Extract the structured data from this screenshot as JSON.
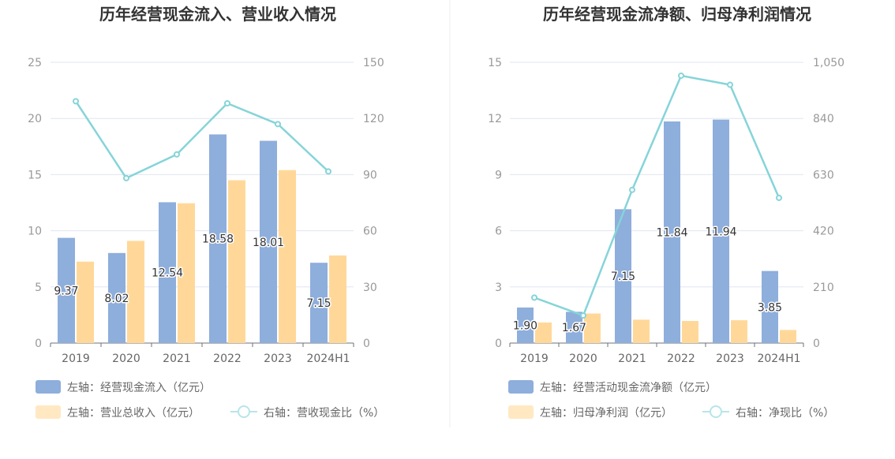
{
  "charts": [
    {
      "title": "历年经营现金流入、营业收入情况",
      "chart_data": {
        "type": "bar",
        "categories": [
          "2019",
          "2020",
          "2021",
          "2022",
          "2023",
          "2024H1"
        ],
        "y_left": {
          "min": 0,
          "max": 25,
          "ticks": [
            "0",
            "5",
            "10",
            "15",
            "20",
            "25"
          ]
        },
        "y_right": {
          "min": 0,
          "max": 150,
          "ticks": [
            "0",
            "30",
            "60",
            "90",
            "120",
            "150"
          ]
        },
        "series": [
          {
            "name": "左轴：经营现金流入（亿元）",
            "kind": "bar",
            "axis": "left",
            "color": "#8eaedc",
            "values": [
              9.37,
              8.02,
              12.54,
              18.58,
              18.01,
              7.15
            ],
            "labels": [
              "9.37",
              "8.02",
              "12.54",
              "18.58",
              "18.01",
              "7.15"
            ]
          },
          {
            "name": "左轴：营业总收入（亿元）",
            "kind": "bar",
            "axis": "left",
            "color": "#ffd899",
            "values": [
              7.25,
              9.1,
              12.45,
              14.5,
              15.4,
              7.8
            ]
          },
          {
            "name": "右轴：营收现金比（%）",
            "kind": "line",
            "axis": "right",
            "color": "#86d4d8",
            "values": [
              129.2,
              88.1,
              100.8,
              128.1,
              117.0,
              91.7
            ]
          }
        ],
        "grid": true,
        "legend": "bottom-left"
      }
    },
    {
      "title": "历年经营现金流净额、归母净利润情况",
      "chart_data": {
        "type": "bar",
        "categories": [
          "2019",
          "2020",
          "2021",
          "2022",
          "2023",
          "2024H1"
        ],
        "y_left": {
          "min": 0,
          "max": 15,
          "ticks": [
            "0",
            "3",
            "6",
            "9",
            "12",
            "15"
          ]
        },
        "y_right": {
          "min": 0,
          "max": 1050,
          "ticks": [
            "0",
            "210",
            "420",
            "630",
            "840",
            "1,050"
          ]
        },
        "series": [
          {
            "name": "左轴：经营活动现金流净额（亿元）",
            "kind": "bar",
            "axis": "left",
            "color": "#8eaedc",
            "values": [
              1.9,
              1.67,
              7.15,
              11.84,
              11.94,
              3.85
            ],
            "labels": [
              "1.90",
              "1.67",
              "7.15",
              "11.84",
              "11.94",
              "3.85"
            ]
          },
          {
            "name": "左轴：归母净利润（亿元）",
            "kind": "bar",
            "axis": "left",
            "color": "#ffd899",
            "values": [
              1.1,
              1.58,
              1.25,
              1.18,
              1.22,
              0.7
            ]
          },
          {
            "name": "右轴：净现比（%）",
            "kind": "line",
            "axis": "right",
            "color": "#86d4d8",
            "values": [
              170,
              103,
              573,
              1000,
              966,
              543
            ]
          }
        ],
        "grid": true,
        "legend": "bottom-left"
      }
    }
  ]
}
